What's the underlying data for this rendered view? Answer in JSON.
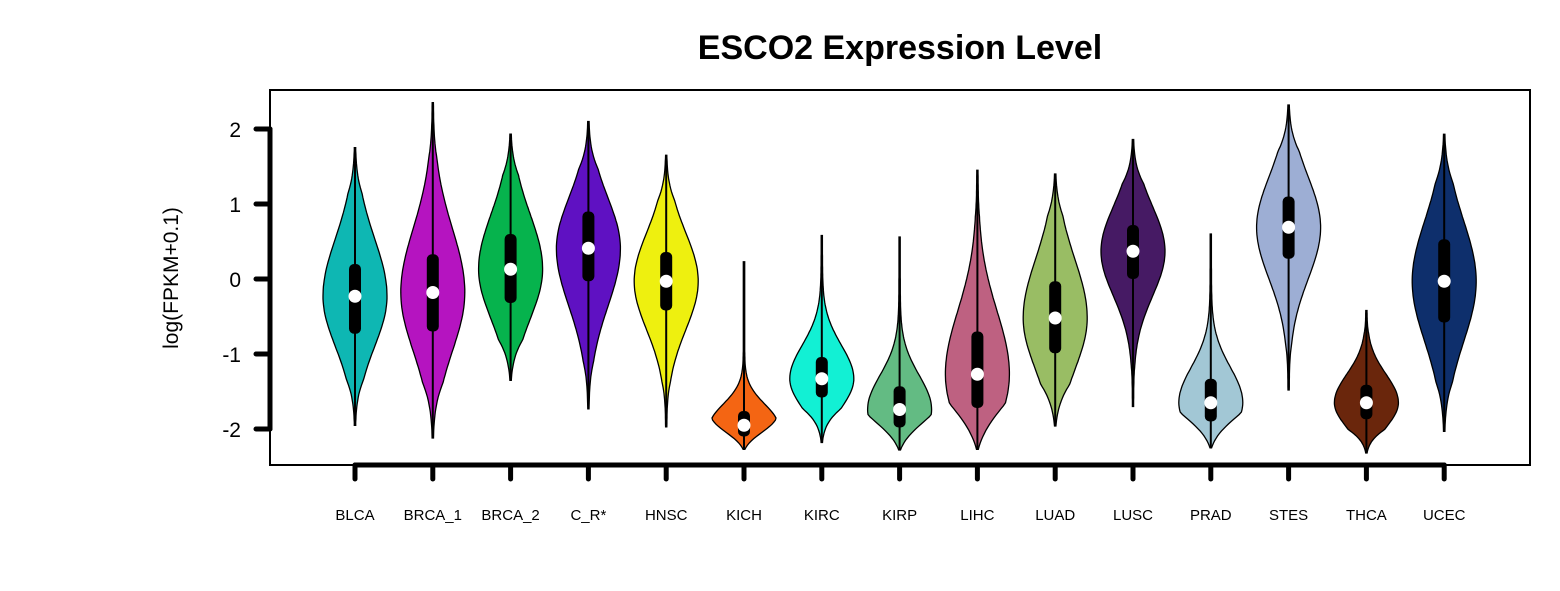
{
  "chart_data": {
    "type": "violin",
    "title": "ESCO2 Expression Level",
    "xlabel": "",
    "ylabel": "log(FPKM+0.1)",
    "ylim": [
      -2.5,
      2.5
    ],
    "yticks": [
      -2,
      -1,
      0,
      1,
      2
    ],
    "ytick_labels": [
      "-2",
      "-1",
      "0",
      "1",
      "2"
    ],
    "grid": false,
    "legend": "none",
    "categories": [
      "BLCA",
      "BRCA_1",
      "BRCA_2",
      "C_R*",
      "HNSC",
      "KICH",
      "KIRC",
      "KIRP",
      "LIHC",
      "LUAD",
      "LUSC",
      "PRAD",
      "STES",
      "THCA",
      "UCEC"
    ],
    "colors": [
      "#0EB7B3",
      "#B514C0",
      "#06B34D",
      "#5F11C2",
      "#EEF00F",
      "#F46513",
      "#12F0D4",
      "#63BB83",
      "#BE6181",
      "#99BD64",
      "#461A64",
      "#A2C7D5",
      "#9DAED4",
      "#6A260C",
      "#0E2F6C"
    ],
    "series": [
      {
        "name": "BLCA",
        "min": -1.95,
        "q1": -0.73,
        "median": -0.23,
        "q3": 0.2,
        "max": 1.75
      },
      {
        "name": "BRCA_1",
        "min": -2.12,
        "q1": -0.7,
        "median": -0.18,
        "q3": 0.33,
        "max": 2.35
      },
      {
        "name": "BRCA_2",
        "min": -1.35,
        "q1": -0.32,
        "median": 0.13,
        "q3": 0.6,
        "max": 1.93
      },
      {
        "name": "C_R*",
        "min": -1.73,
        "q1": -0.03,
        "median": 0.41,
        "q3": 0.9,
        "max": 2.1
      },
      {
        "name": "HNSC",
        "min": -1.97,
        "q1": -0.42,
        "median": -0.03,
        "q3": 0.36,
        "max": 1.65
      },
      {
        "name": "KICH",
        "min": -2.27,
        "q1": -2.1,
        "median": -1.95,
        "q3": -1.76,
        "max": 0.23
      },
      {
        "name": "KIRC",
        "min": -2.18,
        "q1": -1.58,
        "median": -1.33,
        "q3": -1.04,
        "max": 0.58
      },
      {
        "name": "KIRP",
        "min": -2.28,
        "q1": -1.98,
        "median": -1.74,
        "q3": -1.43,
        "max": 0.56
      },
      {
        "name": "LIHC",
        "min": -2.27,
        "q1": -1.72,
        "median": -1.27,
        "q3": -0.7,
        "max": 1.45
      },
      {
        "name": "LUAD",
        "min": -1.96,
        "q1": -0.99,
        "median": -0.52,
        "q3": -0.03,
        "max": 1.4
      },
      {
        "name": "LUSC",
        "min": -1.7,
        "q1": 0.0,
        "median": 0.37,
        "q3": 0.72,
        "max": 1.86
      },
      {
        "name": "PRAD",
        "min": -2.25,
        "q1": -1.9,
        "median": -1.65,
        "q3": -1.33,
        "max": 0.6
      },
      {
        "name": "STES",
        "min": -1.48,
        "q1": 0.27,
        "median": 0.69,
        "q3": 1.1,
        "max": 2.32
      },
      {
        "name": "THCA",
        "min": -2.32,
        "q1": -1.87,
        "median": -1.65,
        "q3": -1.41,
        "max": -0.42
      },
      {
        "name": "UCEC",
        "min": -2.03,
        "q1": -0.58,
        "median": -0.03,
        "q3": 0.53,
        "max": 1.93
      }
    ]
  }
}
